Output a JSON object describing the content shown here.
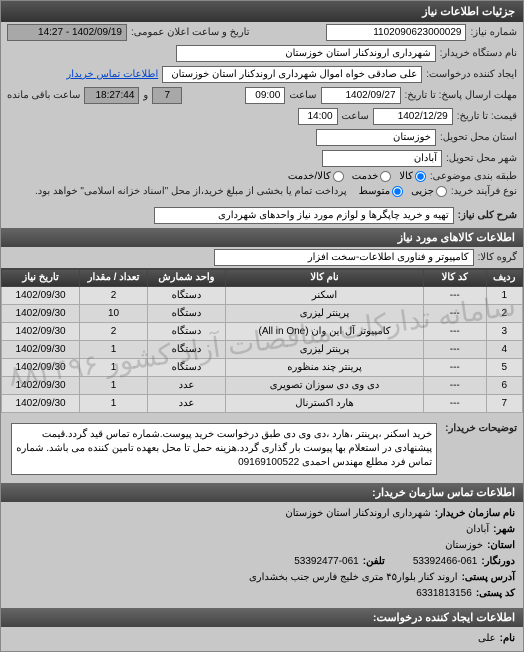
{
  "panel_title": "جزئیات اطلاعات نیاز",
  "form": {
    "need_number_label": "شماره نیاز:",
    "need_number": "1102090623000029",
    "announce_label": "تاریخ و ساعت اعلان عمومی:",
    "announce_value": "1402/09/19 - 14:27",
    "buyer_org_label": "نام دستگاه خریدار:",
    "buyer_org": "شهرداری اروندکنار استان خوزستان",
    "requester_label": "ایجاد کننده درخواست:",
    "requester": "علی صادقی خواه اموال شهرداری اروندکنار استان خوزستان",
    "contact_link": "اطلاعات تماس خریدار",
    "deadline_label": "مهلت ارسال پاسخ: تا تاریخ:",
    "deadline_date": "1402/09/27",
    "time_label": "ساعت",
    "deadline_time": "09:00",
    "days_remain": "7",
    "time_remain": "18:27:44",
    "remain_suffix": "ساعت باقی مانده",
    "and_label": "و",
    "validity_label": "قیمت: تا تاریخ:",
    "validity_date": "1402/12/29",
    "validity_time": "14:00",
    "province_label": "استان محل تحویل:",
    "province": "خوزستان",
    "city_label": "شهر محل تحویل:",
    "city": "آبادان",
    "budget_label": "طبقه بندی موضوعی:",
    "budget_options": {
      "goods": "کالا",
      "service": "خدمت",
      "cash": "کالا/خدمت"
    },
    "pay_label": "نوع فرآیند خرید:",
    "pay_options": {
      "low": "جزیی",
      "mid": "متوسط"
    },
    "pay_note": "پرداخت تمام یا بخشی از مبلغ خرید،از محل \"اسناد خزانه اسلامی\" خواهد بود.",
    "need_title_label": "شرح کلی نیاز:",
    "need_title": "تهیه و خرید چاپگرها و لوازم مورد نیاز واحدهای شهرداری"
  },
  "goods_section_title": "اطلاعات کالاهای مورد نیاز",
  "goods_group_label": "گروه کالا:",
  "goods_group": "کامپیوتر و فناوری اطلاعات-سخت افزار",
  "table": {
    "columns": [
      "ردیف",
      "کد کالا",
      "نام کالا",
      "واحد شمارش",
      "تعداد / مقدار",
      "تاریخ نیاز"
    ],
    "rows": [
      [
        "1",
        "---",
        "اسکنر",
        "دستگاه",
        "2",
        "1402/09/30"
      ],
      [
        "2",
        "---",
        "پرینتر لیزری",
        "دستگاه",
        "10",
        "1402/09/30"
      ],
      [
        "3",
        "---",
        "کامپیوتر آل این وان (All in One)",
        "دستگاه",
        "2",
        "1402/09/30"
      ],
      [
        "4",
        "---",
        "پرینتر لیزری",
        "دستگاه",
        "1",
        "1402/09/30"
      ],
      [
        "5",
        "---",
        "پرینتر چند منظوره",
        "دستگاه",
        "1",
        "1402/09/30"
      ],
      [
        "6",
        "---",
        "دی وی دی سوزان تصویری",
        "عدد",
        "1",
        "1402/09/30"
      ],
      [
        "7",
        "---",
        "هارد اکسترنال",
        "عدد",
        "1",
        "1402/09/30"
      ]
    ],
    "watermark": "سامانه تدارکات مناقصات آزاد کشور  ۸۸۳۴۹۶",
    "col_widths": [
      "7%",
      "12%",
      "38%",
      "15%",
      "13%",
      "15%"
    ]
  },
  "desc_label": "توضیحات خریدار:",
  "desc_text": "خرید اسکنر ،پرینتر ،هارد ،دی وی دی طبق درخواست خرید پیوست.شماره تماس قید گردد.قیمت پیشنهادی در استعلام بها پیوست بار گذاری گردد.هزینه حمل تا محل بعهده تامین کننده می باشد. شماره تماس فرد مطلع مهندس احمدی 09169100522",
  "contact_section_title": "اطلاعات تماس سازمان خریدار:",
  "contact": {
    "org_label": "نام سازمان خریدار:",
    "org": "شهرداری اروندکنار استان خوزستان",
    "city_label": "شهر:",
    "city": "آبادان",
    "province_label": "استان:",
    "province": "خوزستان",
    "fax_label": "دورنگار:",
    "fax": "53392466-061",
    "phone_label": "تلفن:",
    "phone": "53392477-061",
    "address_label": "آدرس پستی:",
    "address": "اروند کنار بلوار۴۵ متری خلیج فارس جنب بخشداری",
    "postal_label": "کد پستی:",
    "postal": "6331813156"
  },
  "creator_section_title": "اطلاعات ایجاد کننده درخواست:",
  "creator": {
    "name_label": "نام:",
    "name": "علی"
  },
  "colors": {
    "header_bg": "#444444",
    "header_fg": "#ffffff",
    "panel_bg": "#c8c8c8",
    "field_bg": "#ffffff",
    "field_gray": "#a8a8a8",
    "link": "#0044cc"
  }
}
